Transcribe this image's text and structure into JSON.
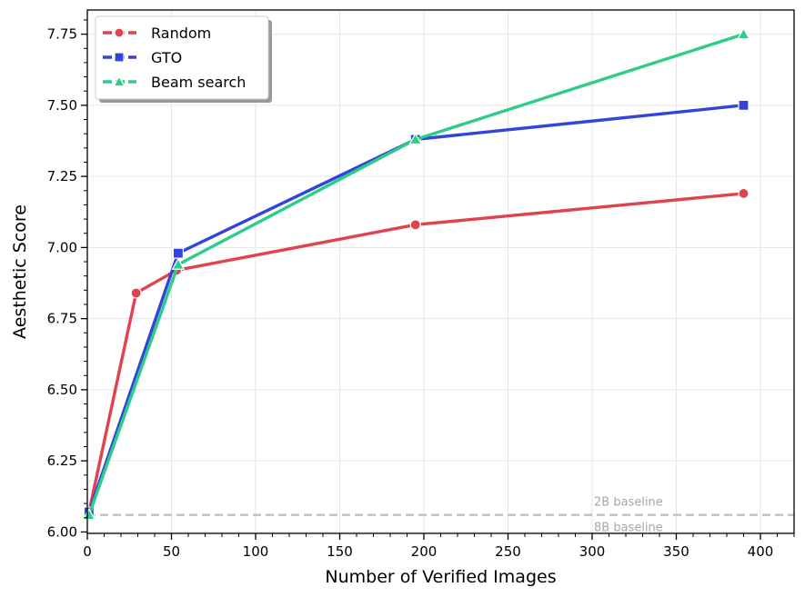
{
  "chart_data": {
    "type": "line",
    "xlabel": "Number of Verified Images",
    "ylabel": "Aesthetic Score",
    "xlim": [
      0,
      420
    ],
    "ylim": [
      5.995,
      7.835
    ],
    "x_ticks": [
      0,
      50,
      100,
      150,
      200,
      250,
      300,
      350,
      400
    ],
    "y_ticks": [
      6.0,
      6.25,
      6.5,
      6.75,
      7.0,
      7.25,
      7.5,
      7.75
    ],
    "y_tick_labels": [
      "6.00",
      "6.25",
      "6.50",
      "6.75",
      "7.00",
      "7.25",
      "7.50",
      "7.75"
    ],
    "grid": true,
    "legend_position": "top-left",
    "series": [
      {
        "name": "Random",
        "color": "#e0434f",
        "marker": "circle",
        "x": [
          1,
          29,
          53,
          195,
          390
        ],
        "y": [
          6.07,
          6.84,
          6.92,
          7.08,
          7.19
        ]
      },
      {
        "name": "GTO",
        "color": "#3344dd",
        "marker": "square",
        "x": [
          1,
          54,
          195,
          390
        ],
        "y": [
          6.07,
          6.98,
          7.38,
          7.5
        ]
      },
      {
        "name": "Beam search",
        "color": "#2ecc89",
        "marker": "triangle",
        "x": [
          1,
          54,
          195,
          390
        ],
        "y": [
          6.06,
          6.94,
          7.38,
          7.75
        ]
      }
    ],
    "baseline": {
      "y": 6.06,
      "color": "#c0c0c0",
      "labels": [
        "2B baseline",
        "8B baseline"
      ]
    }
  }
}
